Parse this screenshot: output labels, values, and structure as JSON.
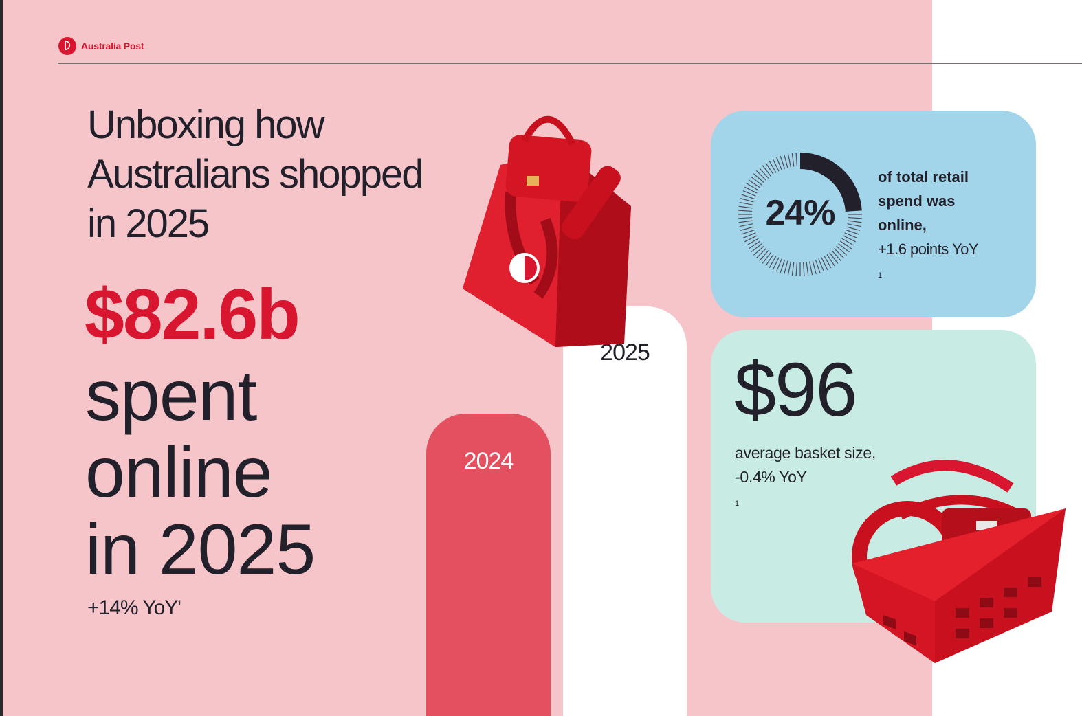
{
  "brand": {
    "name": "Australia Post",
    "color": "#d8162f"
  },
  "headline": {
    "lines": [
      "Unboxing how",
      "Australians shopped",
      "in 2025"
    ]
  },
  "hero_stat": {
    "amount": "$82.6b",
    "lines": [
      "spent",
      "online",
      "in 2025"
    ],
    "yoy": "+14% YoY",
    "footnote": "1"
  },
  "chart_data": {
    "type": "bar",
    "categories": [
      "2024",
      "2025"
    ],
    "values": [
      72.4,
      82.6
    ],
    "colors": [
      "#e4505f",
      "#ffffff"
    ],
    "title": "",
    "xlabel": "",
    "ylabel": "",
    "grid": false
  },
  "online_share": {
    "value": "24%",
    "fraction": 0.24,
    "desc_lines": [
      "of total retail",
      "spend was",
      "online,"
    ],
    "change": "+1.6 points YoY",
    "footnote": "1"
  },
  "basket": {
    "value": "$96",
    "desc_lines": [
      "average basket size,",
      "-0.4% YoY"
    ],
    "footnote": "1"
  },
  "icons": [
    "australia-post-logo-icon",
    "shopping-bag-illustration",
    "shopping-basket-illustration"
  ],
  "colors": {
    "pink_panel": "#f5c5ca",
    "blue_card": "#a2d5ea",
    "green_card": "#c8ebe3",
    "text_dark": "#22212b"
  }
}
